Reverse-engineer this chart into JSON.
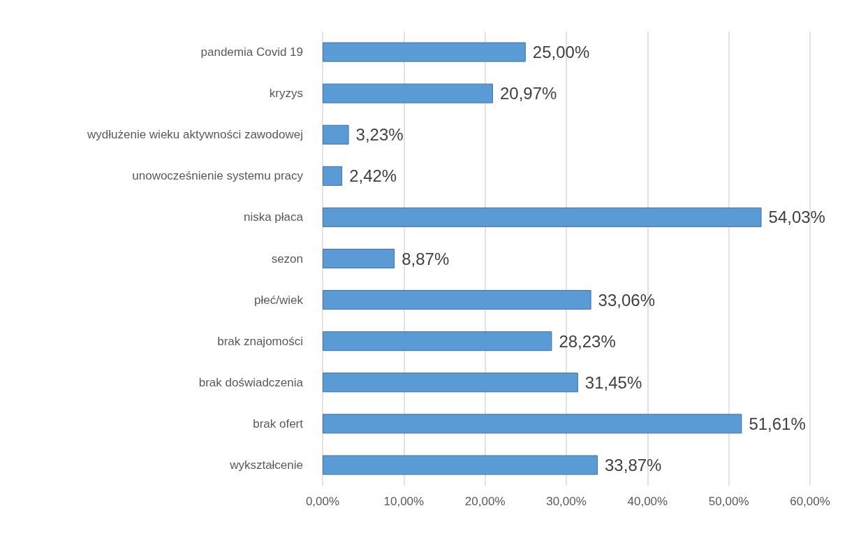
{
  "chart_data": {
    "type": "bar",
    "orientation": "horizontal",
    "categories": [
      "pandemia Covid 19",
      "kryzys",
      "wydłużenie wieku aktywności zawodowej",
      "unowocześnienie systemu pracy",
      "niska płaca",
      "sezon",
      "płeć/wiek",
      "brak znajomości",
      "brak doświadczenia",
      "brak ofert",
      "wykształcenie"
    ],
    "values": [
      25.0,
      20.97,
      3.23,
      2.42,
      54.03,
      8.87,
      33.06,
      28.23,
      31.45,
      51.61,
      33.87
    ],
    "value_labels": [
      "25,00%",
      "20,97%",
      "3,23%",
      "2,42%",
      "54,03%",
      "8,87%",
      "33,06%",
      "28,23%",
      "31,45%",
      "51,61%",
      "33,87%"
    ],
    "color": "#5b9bd5",
    "xlim": [
      0,
      60
    ],
    "xticks": [
      {
        "value": 0,
        "label": "0,00%"
      },
      {
        "value": 10,
        "label": "10,00%"
      },
      {
        "value": 20,
        "label": "20,00%"
      },
      {
        "value": 30,
        "label": "30,00%"
      },
      {
        "value": 40,
        "label": "40,00%"
      },
      {
        "value": 50,
        "label": "50,00%"
      },
      {
        "value": 60,
        "label": "60,00%"
      }
    ],
    "grid": "x"
  }
}
